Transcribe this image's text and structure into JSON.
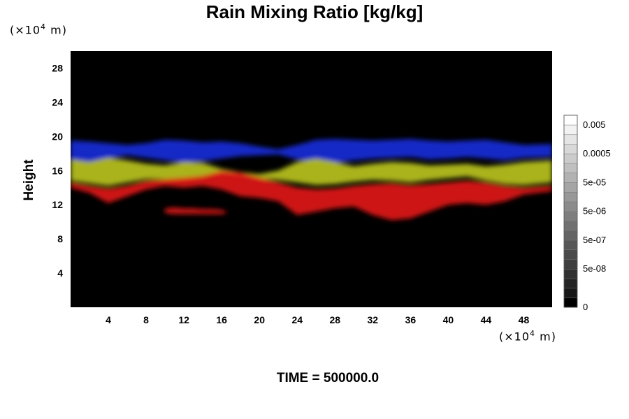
{
  "chart_data": {
    "type": "heatmap",
    "title": "Rain Mixing Ratio [kg/kg]",
    "ylabel": "Height",
    "xlabel": "",
    "x_unit_pre": "(×10",
    "x_unit_exp": "4",
    "x_unit_post": " m)",
    "y_unit_pre": "(×10",
    "y_unit_exp": "4",
    "y_unit_post": " m)",
    "footer": "TIME = 500000.0",
    "xlim": [
      0,
      51
    ],
    "ylim": [
      0,
      30
    ],
    "x_ticks": [
      4,
      8,
      12,
      16,
      20,
      24,
      28,
      32,
      36,
      40,
      44,
      48
    ],
    "y_ticks": [
      4,
      8,
      12,
      16,
      20,
      24,
      28
    ],
    "colorbar": {
      "labels": [
        "0",
        "5e-08",
        "5e-07",
        "5e-06",
        "5e-05",
        "0.0005",
        "0.005"
      ],
      "levels": 20,
      "min_color": "#000000",
      "max_color": "#ffffff"
    },
    "background": "#000000",
    "layers": [
      {
        "name": "blue",
        "color": "#1a2bd8",
        "x": [
          0,
          2,
          4,
          6,
          8,
          10,
          12,
          14,
          16,
          18,
          20,
          22,
          24,
          26,
          28,
          30,
          32,
          34,
          36,
          38,
          40,
          42,
          44,
          46,
          48,
          51
        ],
        "top": [
          19.5,
          19.4,
          19.2,
          19.0,
          19.2,
          19.6,
          19.5,
          19.3,
          19.4,
          19.2,
          18.8,
          18.5,
          19.0,
          19.6,
          19.7,
          19.6,
          19.5,
          19.6,
          19.7,
          19.5,
          19.4,
          19.5,
          19.6,
          19.3,
          19.0,
          19.1
        ],
        "bottom": [
          17.2,
          16.9,
          17.4,
          17.8,
          17.5,
          17.2,
          16.9,
          17.1,
          17.4,
          17.7,
          17.8,
          17.9,
          17.3,
          17.0,
          16.9,
          17.2,
          17.4,
          17.5,
          17.6,
          17.3,
          17.4,
          17.6,
          17.4,
          17.2,
          17.5,
          17.6
        ]
      },
      {
        "name": "yellow",
        "color": "#b8c220",
        "x": [
          0,
          2,
          4,
          6,
          8,
          10,
          12,
          14,
          16,
          18,
          20,
          22,
          24,
          26,
          28,
          30,
          32,
          34,
          36,
          38,
          40,
          42,
          44,
          46,
          48,
          51
        ],
        "top": [
          17.3,
          17.0,
          17.5,
          17.2,
          16.8,
          16.6,
          17.0,
          16.9,
          16.2,
          15.8,
          15.6,
          16.0,
          17.0,
          17.4,
          17.0,
          16.5,
          16.8,
          17.0,
          16.9,
          16.6,
          16.7,
          16.8,
          16.5,
          16.7,
          17.0,
          17.2
        ],
        "bottom": [
          14.8,
          14.5,
          14.2,
          14.6,
          15.0,
          15.0,
          14.8,
          15.3,
          15.6,
          15.4,
          15.1,
          14.9,
          14.6,
          14.3,
          14.4,
          14.7,
          14.9,
          14.8,
          14.6,
          14.9,
          15.1,
          15.3,
          14.8,
          14.4,
          14.3,
          14.6
        ]
      },
      {
        "name": "red",
        "color": "#e01818",
        "x": [
          0,
          2,
          4,
          6,
          8,
          10,
          12,
          14,
          16,
          18,
          20,
          22,
          24,
          26,
          28,
          30,
          32,
          34,
          36,
          38,
          40,
          42,
          44,
          46,
          48,
          51
        ],
        "top": [
          14.6,
          14.2,
          13.9,
          14.2,
          14.8,
          15.0,
          15.2,
          15.4,
          16.0,
          15.8,
          15.2,
          14.6,
          14.0,
          13.8,
          13.9,
          14.2,
          14.4,
          14.5,
          14.3,
          14.4,
          14.6,
          14.8,
          14.6,
          14.2,
          14.0,
          14.2
        ],
        "bottom": [
          14.0,
          13.4,
          12.2,
          13.0,
          13.8,
          14.2,
          14.0,
          14.2,
          13.8,
          13.0,
          12.8,
          12.4,
          10.8,
          11.2,
          11.6,
          11.8,
          10.8,
          10.2,
          10.4,
          11.2,
          12.0,
          12.2,
          12.0,
          12.4,
          13.2,
          13.6
        ]
      },
      {
        "name": "red-band",
        "color": "#d41414",
        "x": [
          10,
          11,
          12,
          13,
          14,
          15,
          16,
          16.5
        ],
        "top": [
          11.6,
          11.7,
          11.6,
          11.6,
          11.5,
          11.5,
          11.4,
          11.2
        ],
        "bottom": [
          11.0,
          10.9,
          10.9,
          10.9,
          10.9,
          10.9,
          10.9,
          11.0
        ]
      }
    ]
  }
}
